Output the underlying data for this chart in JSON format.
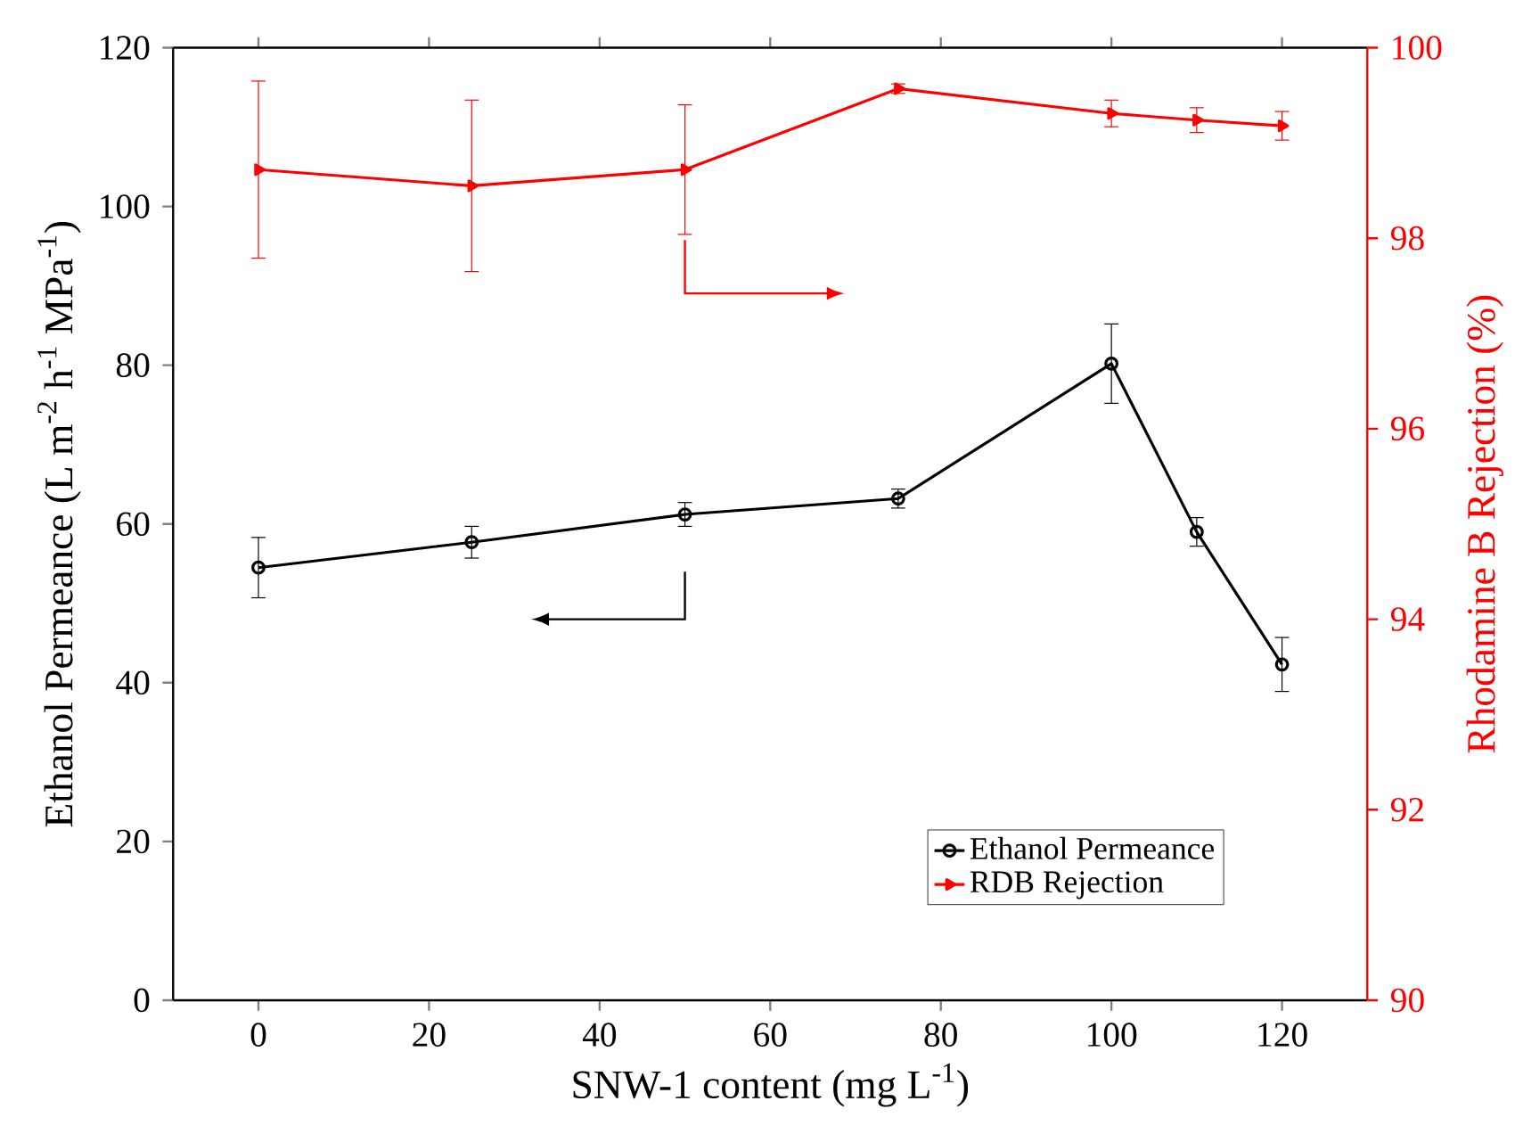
{
  "chart_data": {
    "type": "line",
    "xlabel": "SNW-1 content (mg L$^{-1}$)",
    "ylabel": "Ethanol Permeance (L m$^{-2}$ h$^{-1}$ MPa$^{-1}$)",
    "y2label": "Rhodamine B Rejection (%)",
    "x": [
      0,
      25,
      50,
      75,
      100,
      110,
      120
    ],
    "xlim": [
      -10,
      130
    ],
    "xticks": [
      0,
      20,
      40,
      60,
      80,
      100,
      120
    ],
    "ylim": [
      0,
      120
    ],
    "yticks": [
      0,
      20,
      40,
      60,
      80,
      100,
      120
    ],
    "y2lim": [
      90,
      100
    ],
    "y2ticks": [
      90,
      92,
      94,
      96,
      98,
      100
    ],
    "legend": "bottom right",
    "series": [
      {
        "name": "Ethanol Permeance",
        "color": "#000000",
        "marker": "circle",
        "values": [
          54.5,
          57.7,
          61.2,
          63.2,
          80.2,
          59.0,
          42.3
        ],
        "errors": [
          3.8,
          2.0,
          1.5,
          1.2,
          5.0,
          1.8,
          3.4
        ]
      },
      {
        "name": "RDB Rejection",
        "color": "#ff0000",
        "marker": "triangle",
        "axis": "y2",
        "values": [
          98.72,
          98.55,
          98.72,
          99.57,
          99.31,
          99.24,
          99.18
        ],
        "errors": [
          0.93,
          0.9,
          0.68,
          0.05,
          0.14,
          0.13,
          0.15
        ]
      }
    ]
  }
}
